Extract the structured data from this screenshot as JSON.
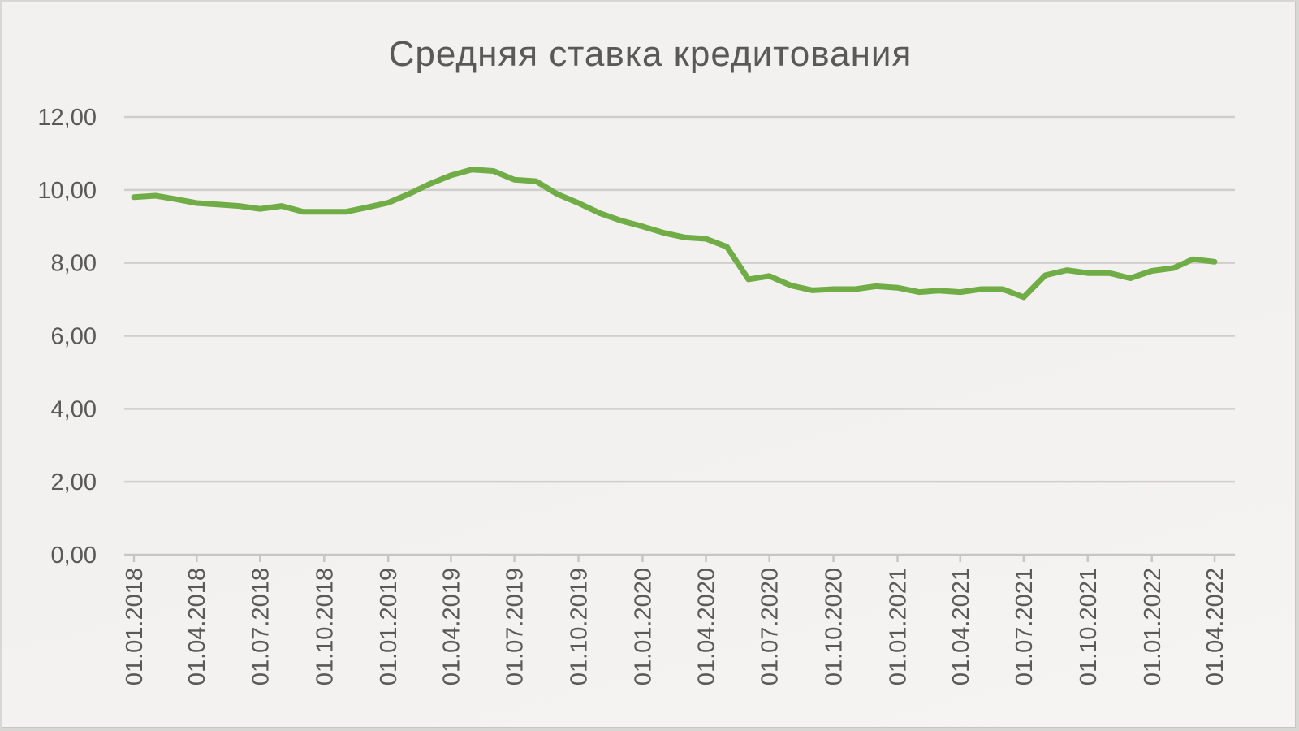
{
  "chart_data": {
    "type": "line",
    "title": "Средняя ставка кредитования",
    "xlabel": "",
    "ylabel": "",
    "ylim": [
      0,
      12
    ],
    "yticks": [
      "0,00",
      "2,00",
      "4,00",
      "6,00",
      "8,00",
      "10,00",
      "12,00"
    ],
    "xtick_labels": [
      "01.01.2018",
      "01.04.2018",
      "01.07.2018",
      "01.10.2018",
      "01.01.2019",
      "01.04.2019",
      "01.07.2019",
      "01.10.2019",
      "01.01.2020",
      "01.04.2020",
      "01.07.2020",
      "01.10.2020",
      "01.01.2021",
      "01.04.2021",
      "01.07.2021",
      "01.10.2021",
      "01.01.2022",
      "01.04.2022"
    ],
    "grid": true,
    "legend": "none",
    "series": [
      {
        "color": "#70ad47",
        "x": [
          "01.01.2018",
          "01.02.2018",
          "01.03.2018",
          "01.04.2018",
          "01.05.2018",
          "01.06.2018",
          "01.07.2018",
          "01.08.2018",
          "01.09.2018",
          "01.10.2018",
          "01.11.2018",
          "01.12.2018",
          "01.01.2019",
          "01.02.2019",
          "01.03.2019",
          "01.04.2019",
          "01.05.2019",
          "01.06.2019",
          "01.07.2019",
          "01.08.2019",
          "01.09.2019",
          "01.10.2019",
          "01.11.2019",
          "01.12.2019",
          "01.01.2020",
          "01.02.2020",
          "01.03.2020",
          "01.04.2020",
          "01.05.2020",
          "01.06.2020",
          "01.07.2020",
          "01.08.2020",
          "01.09.2020",
          "01.10.2020",
          "01.11.2020",
          "01.12.2020",
          "01.01.2021",
          "01.02.2021",
          "01.03.2021",
          "01.04.2021",
          "01.05.2021",
          "01.06.2021",
          "01.07.2021",
          "01.08.2021",
          "01.09.2021",
          "01.10.2021",
          "01.11.2021",
          "01.12.2021",
          "01.01.2022",
          "01.02.2022",
          "01.03.2022",
          "01.04.2022"
        ],
        "values": [
          9.8,
          9.84,
          9.75,
          9.64,
          9.6,
          9.56,
          9.48,
          9.56,
          9.4,
          9.4,
          9.4,
          9.52,
          9.65,
          9.9,
          10.16,
          10.4,
          10.56,
          10.52,
          10.28,
          10.24,
          9.88,
          9.64,
          9.36,
          9.16,
          9.0,
          8.82,
          8.7,
          8.66,
          8.44,
          7.55,
          7.64,
          7.38,
          7.25,
          7.28,
          7.28,
          7.36,
          7.32,
          7.2,
          7.24,
          7.2,
          7.28,
          7.28,
          7.06,
          7.66,
          7.8,
          7.72,
          7.72,
          7.58,
          7.78,
          7.86,
          8.1,
          8.03
        ]
      }
    ]
  }
}
